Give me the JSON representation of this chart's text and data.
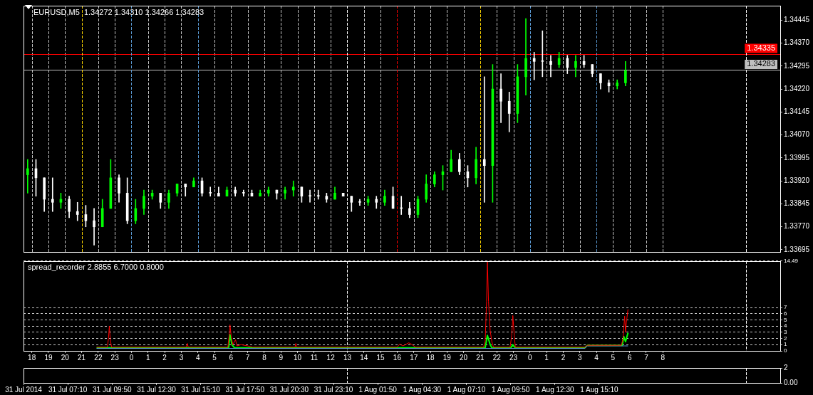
{
  "chart_data": [
    {
      "type": "candlestick",
      "title": "EURUSD,M5  1.34272 1.34310 1.34266 1.34283",
      "x": [
        "2014-07-31T04:45",
        "2014-07-31T05:15",
        "2014-07-31T05:45",
        "2014-07-31T06:15",
        "2014-07-31T06:45",
        "2014-07-31T07:15",
        "2014-07-31T07:45",
        "2014-07-31T08:15",
        "2014-07-31T08:45",
        "2014-07-31T09:15",
        "2014-07-31T09:45",
        "2014-07-31T10:15",
        "2014-07-31T10:45",
        "2014-07-31T11:15",
        "2014-07-31T11:45",
        "2014-07-31T12:15",
        "2014-07-31T12:45",
        "2014-07-31T13:15",
        "2014-07-31T13:45",
        "2014-07-31T14:15",
        "2014-07-31T14:45",
        "2014-07-31T15:15",
        "2014-07-31T15:45",
        "2014-07-31T16:15",
        "2014-07-31T16:45",
        "2014-07-31T17:15",
        "2014-07-31T17:45",
        "2014-07-31T18:15",
        "2014-07-31T18:45",
        "2014-07-31T19:15",
        "2014-07-31T19:45",
        "2014-07-31T20:15",
        "2014-07-31T20:45",
        "2014-07-31T21:15",
        "2014-07-31T21:45",
        "2014-07-31T22:15",
        "2014-07-31T22:45",
        "2014-07-31T23:15",
        "2014-07-31T23:45",
        "2014-08-01T00:15",
        "2014-08-01T00:45",
        "2014-08-01T01:15",
        "2014-08-01T01:45",
        "2014-08-01T02:15",
        "2014-08-01T02:45",
        "2014-08-01T03:15",
        "2014-08-01T03:45",
        "2014-08-01T04:15",
        "2014-08-01T04:45",
        "2014-08-01T05:15",
        "2014-08-01T05:45",
        "2014-08-01T06:15",
        "2014-08-01T06:45",
        "2014-08-01T07:15",
        "2014-08-01T07:45",
        "2014-08-01T08:15",
        "2014-08-01T08:45",
        "2014-08-01T09:15",
        "2014-08-01T09:45",
        "2014-08-01T10:15",
        "2014-08-01T10:45",
        "2014-08-01T11:15",
        "2014-08-01T11:45",
        "2014-08-01T12:15",
        "2014-08-01T12:45",
        "2014-08-01T13:15",
        "2014-08-01T13:45",
        "2014-08-01T14:15",
        "2014-08-01T14:45",
        "2014-08-01T15:15",
        "2014-08-01T15:45",
        "2014-08-01T16:15",
        "2014-08-01T16:45"
      ],
      "ohlc": [
        [
          1.3394,
          1.3399,
          1.3388,
          1.3396
        ],
        [
          1.3396,
          1.3399,
          1.3387,
          1.3393
        ],
        [
          1.3393,
          1.3393,
          1.3382,
          1.3386
        ],
        [
          1.3386,
          1.3393,
          1.3382,
          1.3385
        ],
        [
          1.3385,
          1.3388,
          1.3383,
          1.3386
        ],
        [
          1.3386,
          1.3387,
          1.338,
          1.3382
        ],
        [
          1.3382,
          1.3385,
          1.3379,
          1.3381
        ],
        [
          1.3381,
          1.3384,
          1.3377,
          1.3379
        ],
        [
          1.3379,
          1.3383,
          1.3371,
          1.3377
        ],
        [
          1.3377,
          1.3386,
          1.3377,
          1.3383
        ],
        [
          1.3383,
          1.3399,
          1.3383,
          1.3393
        ],
        [
          1.3393,
          1.3394,
          1.3385,
          1.3388
        ],
        [
          1.3388,
          1.3393,
          1.3378,
          1.3379
        ],
        [
          1.3379,
          1.3386,
          1.3378,
          1.3383
        ],
        [
          1.3383,
          1.3389,
          1.3381,
          1.3387
        ],
        [
          1.3387,
          1.3389,
          1.3386,
          1.3388
        ],
        [
          1.3388,
          1.3388,
          1.3383,
          1.3385
        ],
        [
          1.3385,
          1.3389,
          1.3383,
          1.3388
        ],
        [
          1.3388,
          1.3391,
          1.3387,
          1.3391
        ],
        [
          1.3391,
          1.3391,
          1.3387,
          1.339
        ],
        [
          1.339,
          1.3393,
          1.339,
          1.3392
        ],
        [
          1.3392,
          1.3393,
          1.3387,
          1.3388
        ],
        [
          1.3388,
          1.339,
          1.3387,
          1.3388
        ],
        [
          1.3388,
          1.339,
          1.3387,
          1.3387
        ],
        [
          1.3387,
          1.339,
          1.3387,
          1.3389
        ],
        [
          1.3389,
          1.339,
          1.3387,
          1.3388
        ],
        [
          1.3388,
          1.3389,
          1.3387,
          1.3388
        ],
        [
          1.3388,
          1.3389,
          1.3387,
          1.3387
        ],
        [
          1.3387,
          1.3389,
          1.3387,
          1.3388
        ],
        [
          1.3388,
          1.339,
          1.3387,
          1.3389
        ],
        [
          1.3389,
          1.3389,
          1.3386,
          1.3388
        ],
        [
          1.3388,
          1.339,
          1.3386,
          1.3389
        ],
        [
          1.3389,
          1.3392,
          1.3387,
          1.339
        ],
        [
          1.339,
          1.339,
          1.3385,
          1.3387
        ],
        [
          1.3387,
          1.3389,
          1.3385,
          1.3387
        ],
        [
          1.3387,
          1.3389,
          1.3386,
          1.3387
        ],
        [
          1.3387,
          1.3388,
          1.3385,
          1.3386
        ],
        [
          1.3386,
          1.339,
          1.3386,
          1.3388
        ],
        [
          1.3388,
          1.3388,
          1.3387,
          1.3387
        ],
        [
          1.3387,
          1.3387,
          1.3382,
          1.3385
        ],
        [
          1.3385,
          1.3386,
          1.3384,
          1.3385
        ],
        [
          1.3385,
          1.3387,
          1.3384,
          1.3386
        ],
        [
          1.3386,
          1.3387,
          1.3383,
          1.3385
        ],
        [
          1.3385,
          1.3389,
          1.3384,
          1.3387
        ],
        [
          1.3387,
          1.339,
          1.3383,
          1.3383
        ],
        [
          1.3383,
          1.3387,
          1.3381,
          1.3383
        ],
        [
          1.3383,
          1.3385,
          1.338,
          1.3381
        ],
        [
          1.3381,
          1.3387,
          1.338,
          1.3386
        ],
        [
          1.3386,
          1.3394,
          1.3385,
          1.3391
        ],
        [
          1.3391,
          1.3395,
          1.339,
          1.3394
        ],
        [
          1.3394,
          1.3397,
          1.3389,
          1.3395
        ],
        [
          1.3395,
          1.3402,
          1.3395,
          1.3399
        ],
        [
          1.3399,
          1.3401,
          1.3394,
          1.3395
        ],
        [
          1.3395,
          1.3397,
          1.339,
          1.3393
        ],
        [
          1.3393,
          1.3403,
          1.3391,
          1.3399
        ],
        [
          1.3399,
          1.3426,
          1.3385,
          1.3397
        ],
        [
          1.3397,
          1.343,
          1.3385,
          1.3422
        ],
        [
          1.3422,
          1.3427,
          1.3411,
          1.3418
        ],
        [
          1.3418,
          1.3421,
          1.3408,
          1.3414
        ],
        [
          1.3414,
          1.343,
          1.3411,
          1.3426
        ],
        [
          1.3426,
          1.3445,
          1.342,
          1.3432
        ],
        [
          1.3432,
          1.3434,
          1.3425,
          1.3431
        ],
        [
          1.3431,
          1.3441,
          1.3426,
          1.3431
        ],
        [
          1.3431,
          1.3433,
          1.3426,
          1.343
        ],
        [
          1.343,
          1.3434,
          1.3429,
          1.3432
        ],
        [
          1.3432,
          1.3433,
          1.3427,
          1.3429
        ],
        [
          1.3429,
          1.3433,
          1.3426,
          1.3431
        ],
        [
          1.3431,
          1.3433,
          1.3429,
          1.343
        ],
        [
          1.343,
          1.343,
          1.3426,
          1.3427
        ],
        [
          1.3427,
          1.3427,
          1.3422,
          1.3424
        ],
        [
          1.3424,
          1.3425,
          1.3421,
          1.3423
        ],
        [
          1.3423,
          1.3425,
          1.3422,
          1.3424
        ],
        [
          1.3424,
          1.3431,
          1.3423,
          1.3428
        ]
      ],
      "colors": [
        "#00ff00",
        "#ffffff",
        "#ffffff",
        "#ffffff",
        "#00ff00",
        "#ffffff",
        "#ffffff",
        "#ffffff",
        "#ffffff",
        "#00ff00",
        "#00ff00",
        "#ffffff",
        "#ffffff",
        "#00ff00",
        "#00ff00",
        "#00ff00",
        "#ffffff",
        "#00ff00",
        "#00ff00",
        "#ffffff",
        "#00ff00",
        "#ffffff",
        "#ffffff",
        "#ffffff",
        "#00ff00",
        "#ffffff",
        "#ffffff",
        "#ffffff",
        "#00ff00",
        "#00ff00",
        "#ffffff",
        "#00ff00",
        "#00ff00",
        "#ffffff",
        "#ffffff",
        "#ffffff",
        "#ffffff",
        "#00ff00",
        "#ffffff",
        "#ffffff",
        "#ffffff",
        "#00ff00",
        "#ffffff",
        "#00ff00",
        "#ffffff",
        "#ffffff",
        "#ffffff",
        "#00ff00",
        "#00ff00",
        "#00ff00",
        "#00ff00",
        "#00ff00",
        "#ffffff",
        "#ffffff",
        "#00ff00",
        "#ffffff",
        "#00ff00",
        "#ffffff",
        "#ffffff",
        "#00ff00",
        "#00ff00",
        "#ffffff",
        "#ffffff",
        "#ffffff",
        "#00ff00",
        "#ffffff",
        "#00ff00",
        "#ffffff",
        "#ffffff",
        "#ffffff",
        "#ffffff",
        "#00ff00",
        "#00ff00"
      ],
      "xlim": [
        "2014-07-31T04:30",
        "2014-08-02T02:04"
      ],
      "xticks": [
        "2014-07-31T05:00",
        "2014-07-31T06:00",
        "2014-07-31T07:00",
        "2014-07-31T08:00",
        "2014-07-31T09:00",
        "2014-07-31T10:00",
        "2014-07-31T11:00",
        "2014-07-31T12:00",
        "2014-07-31T13:00",
        "2014-07-31T14:00",
        "2014-07-31T15:00",
        "2014-07-31T16:00",
        "2014-07-31T17:00",
        "2014-07-31T18:00",
        "2014-07-31T19:00",
        "2014-07-31T20:00",
        "2014-07-31T21:00",
        "2014-07-31T22:00",
        "2014-07-31T23:00",
        "2014-08-01T00:00",
        "2014-08-01T01:00",
        "2014-08-01T02:00",
        "2014-08-01T03:00",
        "2014-08-01T04:00",
        "2014-08-01T05:00",
        "2014-08-01T06:00",
        "2014-08-01T07:00",
        "2014-08-01T08:00",
        "2014-08-01T09:00",
        "2014-08-01T10:00",
        "2014-08-01T11:00",
        "2014-08-01T12:00",
        "2014-08-01T13:00",
        "2014-08-01T14:00",
        "2014-08-01T15:00",
        "2014-08-01T16:00",
        "2014-08-01T17:00",
        "2014-08-01T18:00",
        "2014-08-01T19:00"
      ],
      "ylim": [
        1.33688,
        1.34492
      ],
      "yticks": [
        1.34445,
        {
          "value": 1.3437,
          "label": "1.34370"
        },
        1.34295,
        {
          "value": 1.3422,
          "label": "1.34220"
        },
        1.34145,
        {
          "value": 1.3407,
          "label": "1.34070"
        },
        1.33995,
        {
          "value": 1.3392,
          "label": "1.33920"
        },
        1.33845,
        {
          "value": 1.3377,
          "label": "1.33770"
        },
        1.33695
      ],
      "tick_labels": "y",
      "grid": "x",
      "ref_lines": [
        {
          "axis": "y",
          "value": 1.34335,
          "label": "1.34335",
          "color": "#ff0000"
        },
        {
          "axis": "y",
          "value": 1.34283,
          "label": "1.34283",
          "color": "#c0c0c0"
        },
        {
          "axis": "x",
          "value": "2014-07-31T08:00",
          "color": "#ffd700",
          "line_style": "dashed"
        },
        {
          "axis": "x",
          "value": "2014-07-31T11:00",
          "color": "#5b9bd5",
          "line_style": "dashed"
        },
        {
          "axis": "x",
          "value": "2014-07-31T15:00",
          "color": "#5b9bd5",
          "line_style": "dashed"
        },
        {
          "axis": "x",
          "value": "2014-08-01T00:00",
          "color": "#ffffff",
          "line_style": "dashed"
        },
        {
          "axis": "x",
          "value": "2014-08-01T03:00",
          "color": "#ff0000",
          "line_style": "dashed"
        },
        {
          "axis": "x",
          "value": "2014-08-01T08:00",
          "color": "#ffd700",
          "line_style": "dashed"
        },
        {
          "axis": "x",
          "value": "2014-08-01T11:00",
          "color": "#5b9bd5",
          "line_style": "dashed"
        },
        {
          "axis": "x",
          "value": "2014-08-01T15:00",
          "color": "#5b9bd5",
          "line_style": "dashed"
        },
        {
          "axis": "x",
          "value": "2014-08-02T00:00",
          "color": "#ffffff",
          "line_style": "dashed"
        }
      ]
    },
    {
      "type": "line",
      "title": "spread_recorder 2.8855 6.7000 0.8000",
      "marker": "none",
      "line_style": "solid",
      "series": [
        {
          "color": "#ff0000",
          "x": [
            "2014-07-30T21:54",
            "2014-07-30T22:33",
            "2014-07-30T22:37",
            "2014-07-30T22:40",
            "2014-07-30T22:43",
            "2014-07-30T22:48",
            "2014-07-31T03:18",
            "2014-07-31T03:22",
            "2014-07-31T03:25",
            "2014-07-31T05:48",
            "2014-07-31T05:53",
            "2014-07-31T05:56",
            "2014-07-31T06:00",
            "2014-07-31T06:06",
            "2014-07-31T06:16",
            "2014-07-31T06:21",
            "2014-07-31T06:36",
            "2014-07-31T07:00",
            "2014-07-31T07:18",
            "2014-07-31T09:51",
            "2014-07-31T09:54",
            "2014-07-31T09:57",
            "2014-07-31T16:00",
            "2014-07-31T16:09",
            "2014-07-31T16:21",
            "2014-07-31T16:42",
            "2014-07-31T16:54",
            "2014-07-31T17:06",
            "2014-07-31T21:12",
            "2014-07-31T21:18",
            "2014-07-31T21:23",
            "2014-07-31T21:26",
            "2014-07-31T21:30",
            "2014-07-31T21:36",
            "2014-07-31T21:42",
            "2014-07-31T21:48",
            "2014-07-31T22:48",
            "2014-07-31T22:54",
            "2014-07-31T22:58",
            "2014-07-31T23:03",
            "2014-07-31T23:07",
            "2014-08-01T03:18",
            "2014-08-01T03:27",
            "2014-08-01T05:30",
            "2014-08-01T05:36",
            "2014-08-01T05:42",
            "2014-08-01T05:45",
            "2014-08-01T05:48",
            "2014-08-01T05:54"
          ],
          "values": [
            0.6,
            0.6,
            2.0,
            4.0,
            2.0,
            0.6,
            0.6,
            1.2,
            0.6,
            0.6,
            2.5,
            4.2,
            2.5,
            1.0,
            1.8,
            0.8,
            1.0,
            0.8,
            0.6,
            0.6,
            1.2,
            0.6,
            0.6,
            1.1,
            0.8,
            1.3,
            1.0,
            0.6,
            0.6,
            1.5,
            8.0,
            14.49,
            8.0,
            3.3,
            1.5,
            0.6,
            0.6,
            2.5,
            5.7,
            2.5,
            0.6,
            0.6,
            0.9,
            0.9,
            2.0,
            5.6,
            3.0,
            4.5,
            6.7
          ]
        },
        {
          "color": "#00ff00",
          "x": [
            "2014-07-30T21:54",
            "2014-07-31T05:51",
            "2014-07-31T05:56",
            "2014-07-31T06:03",
            "2014-07-31T06:12",
            "2014-07-31T21:18",
            "2014-07-31T21:26",
            "2014-07-31T21:36",
            "2014-07-31T21:42",
            "2014-07-31T22:51",
            "2014-07-31T22:58",
            "2014-07-31T23:06",
            "2014-08-01T03:18",
            "2014-08-01T03:27",
            "2014-08-01T05:33",
            "2014-08-01T05:39",
            "2014-08-01T05:45",
            "2014-08-01T05:54"
          ],
          "values": [
            0.5,
            0.5,
            2.6,
            1.0,
            0.5,
            0.5,
            2.5,
            1.0,
            0.5,
            0.5,
            1.0,
            0.5,
            0.5,
            0.9,
            0.9,
            2.3,
            1.5,
            2.9
          ]
        },
        {
          "color": "#5b9bd5",
          "x": [
            "2014-07-30T21:54",
            "2014-08-01T03:18",
            "2014-08-01T03:27",
            "2014-08-01T05:42",
            "2014-08-01T05:54"
          ],
          "values": [
            0.4,
            0.4,
            0.8,
            0.8,
            0.8
          ]
        }
      ],
      "xlim": [
        "2014-07-30T17:30",
        "2014-08-01T15:04"
      ],
      "xticks": [
        {
          "value": "2014-07-30T18:00",
          "label": "18"
        },
        {
          "value": "2014-07-30T19:00",
          "label": "19"
        },
        {
          "value": "2014-07-30T20:00",
          "label": "20"
        },
        {
          "value": "2014-07-30T21:00",
          "label": "21"
        },
        {
          "value": "2014-07-30T22:00",
          "label": "22"
        },
        {
          "value": "2014-07-30T23:00",
          "label": "23"
        },
        {
          "value": "2014-07-31T00:00",
          "label": "0"
        },
        {
          "value": "2014-07-31T01:00",
          "label": "1"
        },
        {
          "value": "2014-07-31T02:00",
          "label": "2"
        },
        {
          "value": "2014-07-31T03:00",
          "label": "3"
        },
        {
          "value": "2014-07-31T04:00",
          "label": "4"
        },
        {
          "value": "2014-07-31T05:00",
          "label": "5"
        },
        {
          "value": "2014-07-31T06:00",
          "label": "6"
        },
        {
          "value": "2014-07-31T07:00",
          "label": "7"
        },
        {
          "value": "2014-07-31T08:00",
          "label": "8"
        },
        {
          "value": "2014-07-31T09:00",
          "label": "9"
        },
        {
          "value": "2014-07-31T10:00",
          "label": "10"
        },
        {
          "value": "2014-07-31T11:00",
          "label": "11"
        },
        {
          "value": "2014-07-31T12:00",
          "label": "12"
        },
        {
          "value": "2014-07-31T13:00",
          "label": "13"
        },
        {
          "value": "2014-07-31T14:00",
          "label": "14"
        },
        {
          "value": "2014-07-31T15:00",
          "label": "15"
        },
        {
          "value": "2014-07-31T16:00",
          "label": "16"
        },
        {
          "value": "2014-07-31T17:00",
          "label": "17"
        },
        {
          "value": "2014-07-31T18:00",
          "label": "18"
        },
        {
          "value": "2014-07-31T19:00",
          "label": "19"
        },
        {
          "value": "2014-07-31T20:00",
          "label": "20"
        },
        {
          "value": "2014-07-31T21:00",
          "label": "21"
        },
        {
          "value": "2014-07-31T22:00",
          "label": "22"
        },
        {
          "value": "2014-07-31T23:00",
          "label": "23"
        },
        {
          "value": "2014-08-01T00:00",
          "label": "0"
        },
        {
          "value": "2014-08-01T01:00",
          "label": "1"
        },
        {
          "value": "2014-08-01T02:00",
          "label": "2"
        },
        {
          "value": "2014-08-01T03:00",
          "label": "3"
        },
        {
          "value": "2014-08-01T04:00",
          "label": "4"
        },
        {
          "value": "2014-08-01T05:00",
          "label": "5"
        },
        {
          "value": "2014-08-01T06:00",
          "label": "6"
        },
        {
          "value": "2014-08-01T07:00",
          "label": "7"
        },
        {
          "value": "2014-08-01T08:00",
          "label": "8"
        }
      ],
      "ylim": [
        0,
        14.49
      ],
      "yticks": [
        0,
        1,
        2,
        3,
        4,
        5,
        6,
        7,
        14.49
      ],
      "grid": "y",
      "ref_lines": [
        {
          "axis": "x",
          "value": "2014-07-31T13:00",
          "color": "#ffffff",
          "line_style": "dashed"
        },
        {
          "axis": "x",
          "value": "2014-08-01T13:00",
          "color": "#ffffff",
          "line_style": "dashed"
        }
      ]
    },
    {
      "type": "line",
      "xlim": [
        "2014-07-31T04:30",
        "2014-08-02T02:04"
      ],
      "xticks": [
        {
          "value": "2014-07-31T04:30",
          "label": "31 Jul 2014"
        },
        {
          "value": "2014-07-31T07:10",
          "label": "31 Jul 07:10"
        },
        {
          "value": "2014-07-31T09:50",
          "label": "31 Jul 09:50"
        },
        {
          "value": "2014-07-31T12:30",
          "label": "31 Jul 12:30"
        },
        {
          "value": "2014-07-31T15:10",
          "label": "31 Jul 15:10"
        },
        {
          "value": "2014-07-31T17:50",
          "label": "31 Jul 17:50"
        },
        {
          "value": "2014-07-31T20:30",
          "label": "31 Jul 20:30"
        },
        {
          "value": "2014-07-31T23:10",
          "label": "31 Jul 23:10"
        },
        {
          "value": "2014-08-01T01:50",
          "label": "1 Aug 01:50"
        },
        {
          "value": "2014-08-01T04:30",
          "label": "1 Aug 04:30"
        },
        {
          "value": "2014-08-01T07:10",
          "label": "1 Aug 07:10"
        },
        {
          "value": "2014-08-01T09:50",
          "label": "1 Aug 09:50"
        },
        {
          "value": "2014-08-01T12:30",
          "label": "1 Aug 12:30"
        },
        {
          "value": "2014-08-01T15:10",
          "label": "1 Aug 15:10"
        }
      ],
      "ylim": [
        0,
        2
      ],
      "yticks": [
        2,
        {
          "value": 0,
          "label": "0.00"
        }
      ],
      "ref_lines": [
        {
          "axis": "x",
          "value": "2014-08-01T00:00",
          "color": "#ffffff",
          "line_style": "dashed"
        },
        {
          "axis": "x",
          "value": "2014-08-02T00:00",
          "color": "#ffffff",
          "line_style": "dashed"
        }
      ]
    }
  ]
}
